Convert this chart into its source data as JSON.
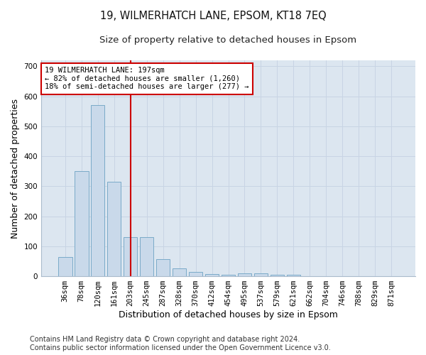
{
  "title_line1": "19, WILMERHATCH LANE, EPSOM, KT18 7EQ",
  "title_line2": "Size of property relative to detached houses in Epsom",
  "xlabel": "Distribution of detached houses by size in Epsom",
  "ylabel": "Number of detached properties",
  "categories": [
    "36sqm",
    "78sqm",
    "120sqm",
    "161sqm",
    "203sqm",
    "245sqm",
    "287sqm",
    "328sqm",
    "370sqm",
    "412sqm",
    "454sqm",
    "495sqm",
    "537sqm",
    "579sqm",
    "621sqm",
    "662sqm",
    "704sqm",
    "746sqm",
    "788sqm",
    "829sqm",
    "871sqm"
  ],
  "values": [
    65,
    350,
    570,
    315,
    130,
    130,
    57,
    27,
    15,
    8,
    5,
    10,
    10,
    5,
    5,
    0,
    0,
    0,
    0,
    0,
    0
  ],
  "bar_color": "#c9d9ea",
  "bar_edge_color": "#7aaac8",
  "vline_x_index": 4,
  "vline_color": "#cc0000",
  "vline_label": "19 WILMERHATCH LANE: 197sqm",
  "annotation_line2": "← 82% of detached houses are smaller (1,260)",
  "annotation_line3": "18% of semi-detached houses are larger (277) →",
  "annotation_box_color": "#ffffff",
  "annotation_box_edge": "#cc0000",
  "ylim": [
    0,
    720
  ],
  "yticks": [
    0,
    100,
    200,
    300,
    400,
    500,
    600,
    700
  ],
  "grid_color": "#c8d4e4",
  "background_color": "#dce6f0",
  "fig_background_color": "#ffffff",
  "footer_line1": "Contains HM Land Registry data © Crown copyright and database right 2024.",
  "footer_line2": "Contains public sector information licensed under the Open Government Licence v3.0.",
  "title_fontsize": 10.5,
  "subtitle_fontsize": 9.5,
  "axis_label_fontsize": 9,
  "tick_fontsize": 7.5,
  "annotation_fontsize": 7.5,
  "footer_fontsize": 7
}
